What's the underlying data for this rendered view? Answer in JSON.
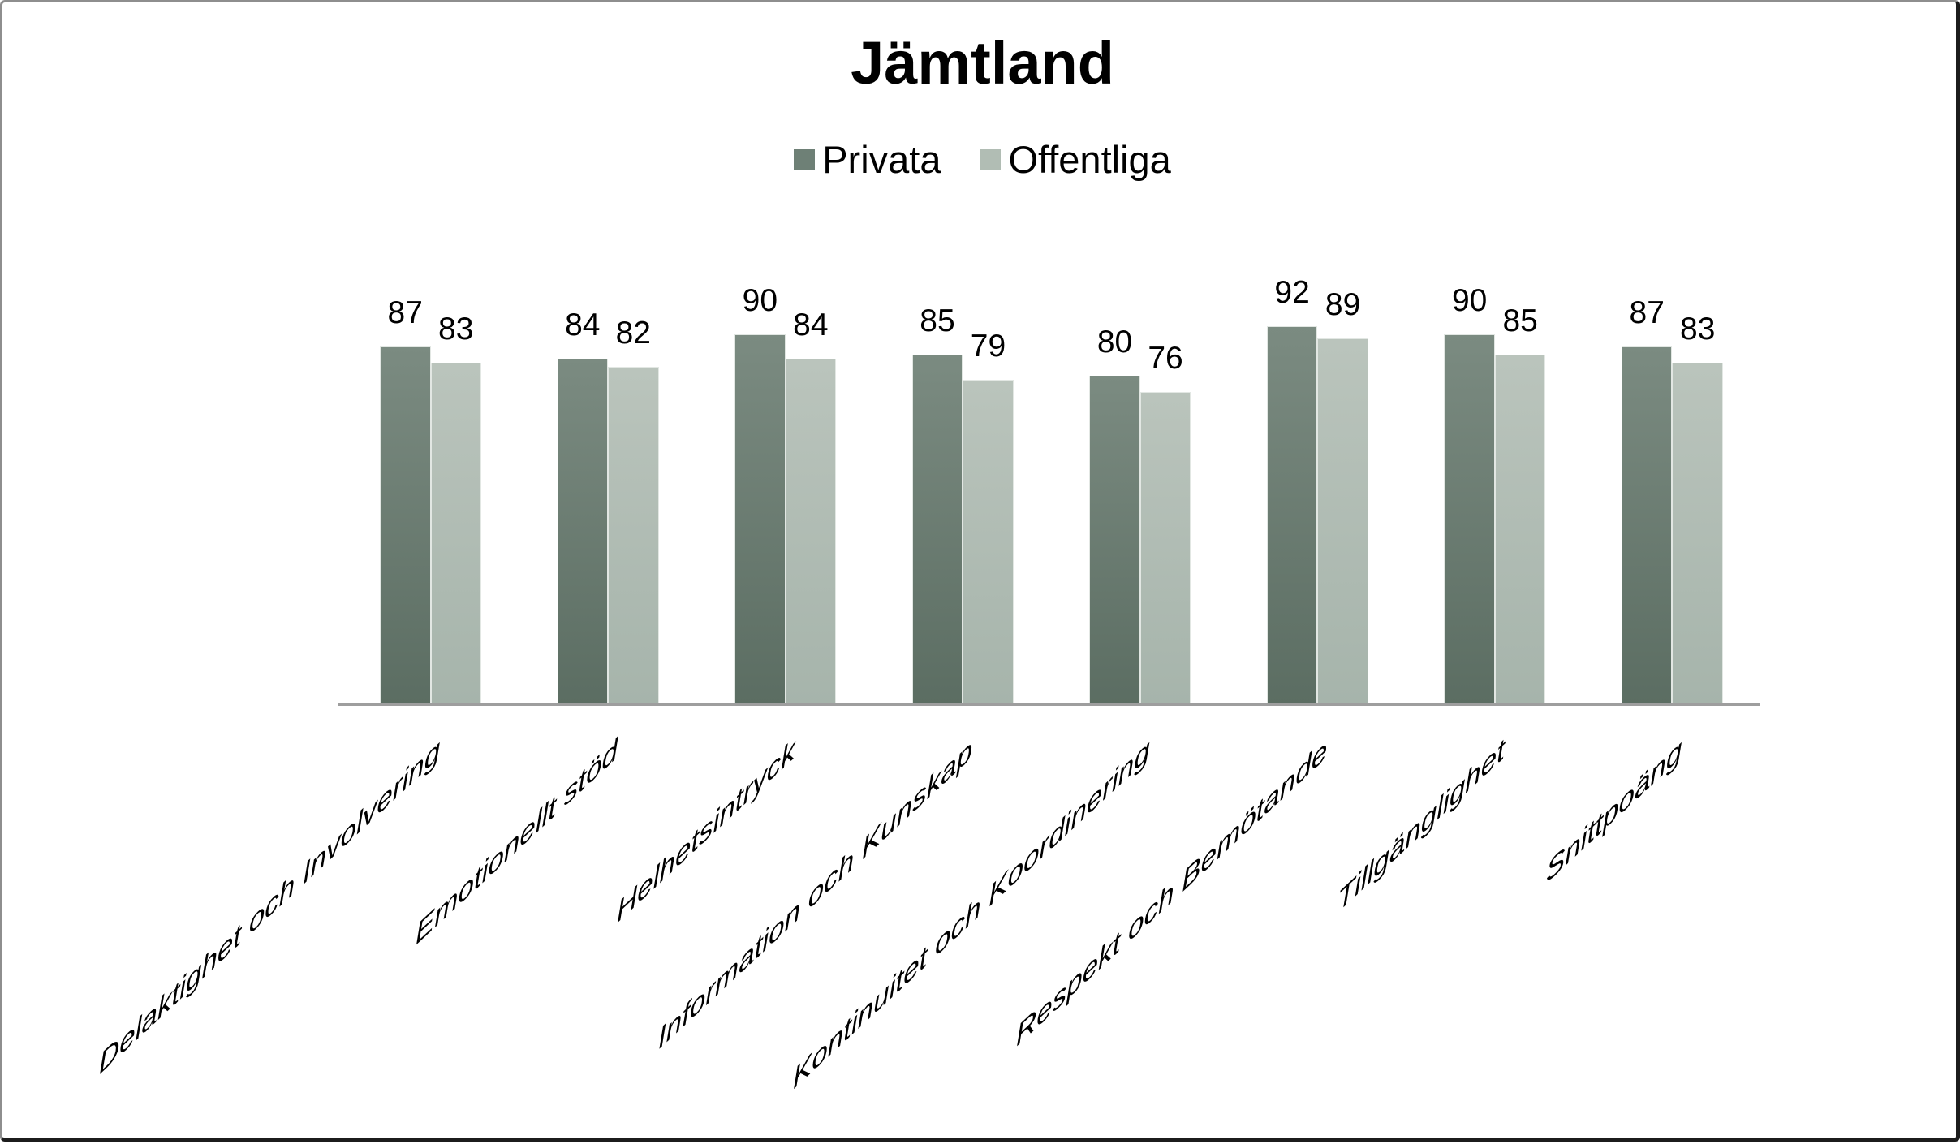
{
  "title": "Jämtland",
  "legend": {
    "items": [
      {
        "label": "Privata"
      },
      {
        "label": "Offentliga"
      }
    ]
  },
  "colors": {
    "privata_swatch": "#6e8076",
    "privata_bar_top": "#7b8b81",
    "privata_bar_bottom": "#5b6d62",
    "offentliga_swatch": "#b1bdb4",
    "offentliga_bar_top": "#bac4bc",
    "offentliga_bar_bottom": "#a6b4ab",
    "axis_line": "#9e9e9e",
    "text": "#000000",
    "background": "#ffffff"
  },
  "chart_data": {
    "type": "bar",
    "title": "Jämtland",
    "categories": [
      "Delaktighet och Involvering",
      "Emotionellt stöd",
      "Helhetsintryck",
      "Information och Kunskap",
      "Kontinuitet och Koordinering",
      "Respekt och Bemötande",
      "Tillgänglighet",
      "Snittpoäng"
    ],
    "series": [
      {
        "name": "Privata",
        "values": [
          87,
          84,
          90,
          85,
          80,
          92,
          90,
          87
        ],
        "color_top": "#7b8b81",
        "color_bottom": "#5b6d62",
        "swatch_color": "#6e8076"
      },
      {
        "name": "Offentliga",
        "values": [
          83,
          82,
          84,
          79,
          76,
          89,
          85,
          83
        ],
        "color_top": "#bac4bc",
        "color_bottom": "#a6b4ab",
        "swatch_color": "#b1bdb4"
      }
    ],
    "xlabel": "",
    "ylabel": "",
    "ylim": [
      0,
      100
    ],
    "grid": false,
    "y_axis_visible": false,
    "data_labels_visible": true,
    "legend_position": "top",
    "category_label_rotation_deg": -43
  }
}
